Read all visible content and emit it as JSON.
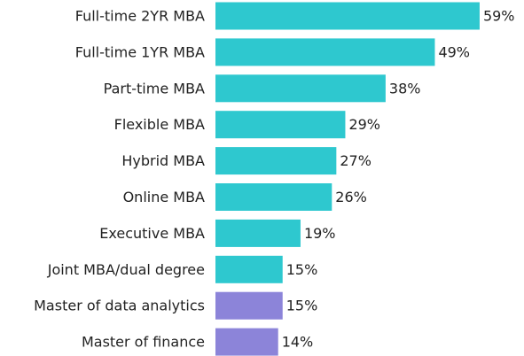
{
  "chart_data": {
    "type": "hbar",
    "categories": [
      "Full-time 2YR MBA",
      "Full-time 1YR MBA",
      "Part-time MBA",
      "Flexible MBA",
      "Hybrid MBA",
      "Online MBA",
      "Executive MBA",
      "Joint MBA/dual degree",
      "Master of data analytics",
      "Master of finance"
    ],
    "values": [
      59,
      49,
      38,
      29,
      27,
      26,
      19,
      15,
      15,
      14
    ],
    "value_labels": [
      "59%",
      "49%",
      "38%",
      "29%",
      "27%",
      "26%",
      "19%",
      "15%",
      "15%",
      "14%"
    ],
    "colors": [
      "#2ec8cf",
      "#2ec8cf",
      "#2ec8cf",
      "#2ec8cf",
      "#2ec8cf",
      "#2ec8cf",
      "#2ec8cf",
      "#2ec8cf",
      "#8c84d9",
      "#8c84d9"
    ]
  }
}
